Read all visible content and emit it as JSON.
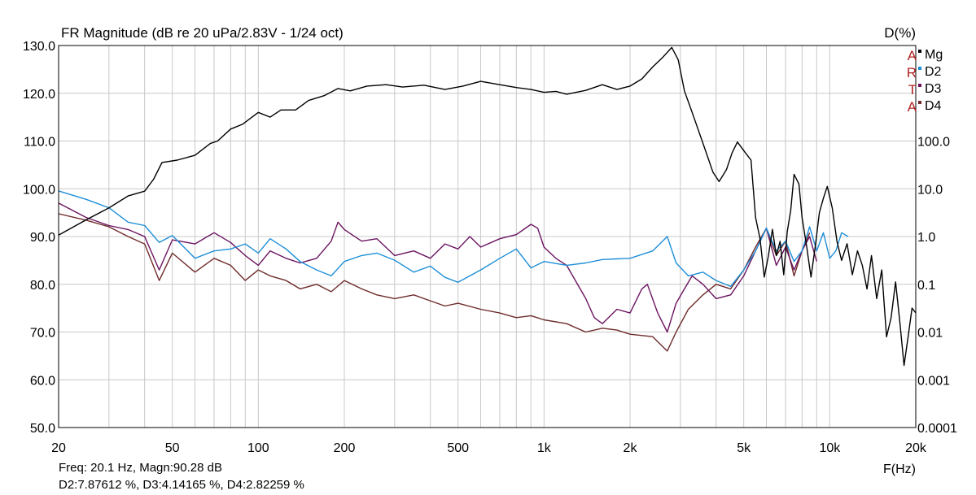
{
  "chart_data": {
    "type": "line",
    "title": "FR Magnitude (dB re 20 uPa/2.83V - 1/24 oct)",
    "right_axis_title": "D(%)",
    "xlabel": "F(Hz)",
    "x_scale": "log",
    "xlim": [
      20,
      20000
    ],
    "x_ticks": [
      {
        "value": 20,
        "label": "20"
      },
      {
        "value": 50,
        "label": "50"
      },
      {
        "value": 100,
        "label": "100"
      },
      {
        "value": 200,
        "label": "200"
      },
      {
        "value": 500,
        "label": "500"
      },
      {
        "value": 1000,
        "label": "1k"
      },
      {
        "value": 2000,
        "label": "2k"
      },
      {
        "value": 5000,
        "label": "5k"
      },
      {
        "value": 10000,
        "label": "10k"
      },
      {
        "value": 20000,
        "label": "20k"
      }
    ],
    "ylim_left": [
      50,
      130
    ],
    "y_ticks_left": [
      "50.0",
      "60.0",
      "70.0",
      "80.0",
      "90.0",
      "100.0",
      "110.0",
      "120.0",
      "130.0"
    ],
    "right_axis_scale": "log",
    "ylim_right": [
      0.0001,
      10000
    ],
    "y_ticks_right": [
      {
        "value": 0.0001,
        "label": "0.0001"
      },
      {
        "value": 0.001,
        "label": "0.001"
      },
      {
        "value": 0.01,
        "label": "0.01"
      },
      {
        "value": 0.1,
        "label": "0.1"
      },
      {
        "value": 1,
        "label": "1.0"
      },
      {
        "value": 10,
        "label": "10.0"
      },
      {
        "value": 100,
        "label": "100.0"
      }
    ],
    "grid": true,
    "legend_position": "top-right",
    "watermark": [
      "A",
      "R",
      "T",
      "A"
    ],
    "watermark_color": "#b22222",
    "series": [
      {
        "name": "Mg",
        "axis": "left",
        "color": "#000000",
        "points": [
          [
            20,
            90.3
          ],
          [
            25,
            93.5
          ],
          [
            30,
            96
          ],
          [
            35,
            98.5
          ],
          [
            40,
            99.5
          ],
          [
            43,
            102
          ],
          [
            46,
            105.5
          ],
          [
            52,
            106
          ],
          [
            60,
            107
          ],
          [
            68,
            109.5
          ],
          [
            72,
            110
          ],
          [
            80,
            112.5
          ],
          [
            88,
            113.5
          ],
          [
            100,
            116
          ],
          [
            110,
            115
          ],
          [
            120,
            116.5
          ],
          [
            135,
            116.5
          ],
          [
            150,
            118.5
          ],
          [
            170,
            119.5
          ],
          [
            190,
            121
          ],
          [
            210,
            120.5
          ],
          [
            240,
            121.5
          ],
          [
            280,
            121.8
          ],
          [
            320,
            121.3
          ],
          [
            380,
            121.7
          ],
          [
            450,
            120.8
          ],
          [
            520,
            121.5
          ],
          [
            600,
            122.5
          ],
          [
            700,
            121.8
          ],
          [
            800,
            121.2
          ],
          [
            900,
            120.8
          ],
          [
            1000,
            120.2
          ],
          [
            1100,
            120.4
          ],
          [
            1200,
            119.8
          ],
          [
            1400,
            120.6
          ],
          [
            1600,
            121.8
          ],
          [
            1800,
            120.8
          ],
          [
            2000,
            121.5
          ],
          [
            2200,
            123
          ],
          [
            2400,
            125.5
          ],
          [
            2600,
            127.5
          ],
          [
            2800,
            129.6
          ],
          [
            2950,
            127
          ],
          [
            3100,
            120.5
          ],
          [
            3300,
            116
          ],
          [
            3600,
            109.5
          ],
          [
            3900,
            103.5
          ],
          [
            4100,
            101.5
          ],
          [
            4350,
            104
          ],
          [
            4550,
            107.5
          ],
          [
            4750,
            109.8
          ],
          [
            5000,
            108
          ],
          [
            5300,
            106
          ],
          [
            5500,
            94
          ],
          [
            5700,
            89.5
          ],
          [
            5900,
            81.5
          ],
          [
            6100,
            86
          ],
          [
            6300,
            91.5
          ],
          [
            6500,
            86
          ],
          [
            6700,
            89
          ],
          [
            6900,
            82
          ],
          [
            7100,
            91
          ],
          [
            7300,
            95.5
          ],
          [
            7500,
            103
          ],
          [
            7800,
            101
          ],
          [
            8000,
            94
          ],
          [
            8300,
            88
          ],
          [
            8600,
            81.5
          ],
          [
            8900,
            88
          ],
          [
            9200,
            95
          ],
          [
            9500,
            98
          ],
          [
            9800,
            100.5
          ],
          [
            10200,
            96
          ],
          [
            10600,
            89
          ],
          [
            11000,
            85
          ],
          [
            11500,
            88.5
          ],
          [
            12000,
            82
          ],
          [
            12500,
            87
          ],
          [
            13000,
            84
          ],
          [
            13500,
            79
          ],
          [
            14000,
            86
          ],
          [
            14600,
            77
          ],
          [
            15200,
            83
          ],
          [
            15800,
            69
          ],
          [
            16400,
            73
          ],
          [
            17000,
            80.5
          ],
          [
            17600,
            72
          ],
          [
            18200,
            63
          ],
          [
            18800,
            69
          ],
          [
            19400,
            75
          ],
          [
            20000,
            74
          ]
        ]
      },
      {
        "name": "D2",
        "axis": "right",
        "color": "#1e8fd8",
        "points": [
          [
            20,
            9.0
          ],
          [
            25,
            6.0
          ],
          [
            30,
            4.0
          ],
          [
            35,
            2.0
          ],
          [
            40,
            1.7
          ],
          [
            45,
            0.75
          ],
          [
            50,
            1.05
          ],
          [
            60,
            0.35
          ],
          [
            70,
            0.5
          ],
          [
            80,
            0.55
          ],
          [
            90,
            0.7
          ],
          [
            100,
            0.45
          ],
          [
            110,
            0.9
          ],
          [
            125,
            0.55
          ],
          [
            140,
            0.3
          ],
          [
            160,
            0.2
          ],
          [
            180,
            0.15
          ],
          [
            200,
            0.3
          ],
          [
            230,
            0.4
          ],
          [
            260,
            0.45
          ],
          [
            300,
            0.32
          ],
          [
            350,
            0.18
          ],
          [
            400,
            0.24
          ],
          [
            450,
            0.14
          ],
          [
            500,
            0.11
          ],
          [
            600,
            0.2
          ],
          [
            700,
            0.35
          ],
          [
            800,
            0.55
          ],
          [
            900,
            0.22
          ],
          [
            1000,
            0.3
          ],
          [
            1200,
            0.25
          ],
          [
            1400,
            0.28
          ],
          [
            1600,
            0.33
          ],
          [
            1800,
            0.34
          ],
          [
            2000,
            0.35
          ],
          [
            2400,
            0.5
          ],
          [
            2700,
            1.0
          ],
          [
            2900,
            0.28
          ],
          [
            3200,
            0.15
          ],
          [
            3600,
            0.18
          ],
          [
            4000,
            0.12
          ],
          [
            4500,
            0.09
          ],
          [
            5000,
            0.2
          ],
          [
            5500,
            0.5
          ],
          [
            6000,
            1.5
          ],
          [
            6500,
            0.5
          ],
          [
            7000,
            0.8
          ],
          [
            7500,
            0.3
          ],
          [
            8000,
            0.5
          ],
          [
            8500,
            1.6
          ],
          [
            9000,
            0.5
          ],
          [
            9500,
            1.2
          ],
          [
            10000,
            0.35
          ],
          [
            10500,
            0.5
          ],
          [
            11000,
            1.2
          ],
          [
            11600,
            1.0
          ]
        ]
      },
      {
        "name": "D3",
        "axis": "right",
        "color": "#6b1460",
        "points": [
          [
            20,
            5.0
          ],
          [
            25,
            2.5
          ],
          [
            30,
            1.7
          ],
          [
            35,
            1.4
          ],
          [
            40,
            1.0
          ],
          [
            45,
            0.2
          ],
          [
            50,
            0.85
          ],
          [
            60,
            0.7
          ],
          [
            70,
            1.2
          ],
          [
            80,
            0.75
          ],
          [
            90,
            0.4
          ],
          [
            100,
            0.25
          ],
          [
            110,
            0.5
          ],
          [
            125,
            0.35
          ],
          [
            140,
            0.28
          ],
          [
            160,
            0.35
          ],
          [
            180,
            0.8
          ],
          [
            190,
            2.0
          ],
          [
            200,
            1.4
          ],
          [
            230,
            0.8
          ],
          [
            260,
            0.9
          ],
          [
            300,
            0.4
          ],
          [
            350,
            0.5
          ],
          [
            400,
            0.35
          ],
          [
            450,
            0.7
          ],
          [
            500,
            0.55
          ],
          [
            550,
            1.0
          ],
          [
            600,
            0.6
          ],
          [
            700,
            0.9
          ],
          [
            800,
            1.1
          ],
          [
            900,
            1.8
          ],
          [
            950,
            1.5
          ],
          [
            1000,
            0.6
          ],
          [
            1100,
            0.35
          ],
          [
            1200,
            0.25
          ],
          [
            1400,
            0.05
          ],
          [
            1500,
            0.02
          ],
          [
            1600,
            0.015
          ],
          [
            1800,
            0.03
          ],
          [
            2000,
            0.025
          ],
          [
            2200,
            0.08
          ],
          [
            2300,
            0.1
          ],
          [
            2500,
            0.025
          ],
          [
            2700,
            0.01
          ],
          [
            2900,
            0.04
          ],
          [
            3100,
            0.08
          ],
          [
            3300,
            0.15
          ],
          [
            3600,
            0.1
          ],
          [
            4000,
            0.05
          ],
          [
            4500,
            0.06
          ],
          [
            5000,
            0.15
          ],
          [
            5500,
            0.5
          ],
          [
            6000,
            1.5
          ],
          [
            6500,
            0.25
          ],
          [
            7000,
            0.6
          ],
          [
            7500,
            0.2
          ],
          [
            8000,
            0.5
          ],
          [
            8500,
            1.0
          ],
          [
            9000,
            0.3
          ]
        ]
      },
      {
        "name": "D4",
        "axis": "right",
        "color": "#6e2b2b",
        "points": [
          [
            20,
            3.0
          ],
          [
            25,
            2.2
          ],
          [
            30,
            1.6
          ],
          [
            35,
            1.0
          ],
          [
            40,
            0.7
          ],
          [
            45,
            0.12
          ],
          [
            50,
            0.45
          ],
          [
            60,
            0.18
          ],
          [
            70,
            0.35
          ],
          [
            80,
            0.25
          ],
          [
            90,
            0.12
          ],
          [
            100,
            0.2
          ],
          [
            110,
            0.15
          ],
          [
            125,
            0.12
          ],
          [
            140,
            0.08
          ],
          [
            160,
            0.1
          ],
          [
            180,
            0.07
          ],
          [
            200,
            0.12
          ],
          [
            230,
            0.08
          ],
          [
            260,
            0.06
          ],
          [
            300,
            0.05
          ],
          [
            350,
            0.06
          ],
          [
            400,
            0.045
          ],
          [
            450,
            0.035
          ],
          [
            500,
            0.04
          ],
          [
            600,
            0.03
          ],
          [
            700,
            0.025
          ],
          [
            800,
            0.02
          ],
          [
            900,
            0.022
          ],
          [
            1000,
            0.018
          ],
          [
            1200,
            0.015
          ],
          [
            1400,
            0.01
          ],
          [
            1600,
            0.012
          ],
          [
            1800,
            0.011
          ],
          [
            2000,
            0.009
          ],
          [
            2400,
            0.008
          ],
          [
            2700,
            0.004
          ],
          [
            2900,
            0.01
          ],
          [
            3200,
            0.03
          ],
          [
            3600,
            0.06
          ],
          [
            4000,
            0.1
          ],
          [
            4500,
            0.08
          ],
          [
            5000,
            0.2
          ],
          [
            5500,
            0.6
          ],
          [
            6000,
            1.5
          ],
          [
            6500,
            0.4
          ],
          [
            7000,
            0.8
          ],
          [
            7500,
            0.15
          ],
          [
            8000,
            0.5
          ],
          [
            8500,
            1.2
          ]
        ]
      }
    ],
    "cursor_readout_line1": "Freq: 20.1 Hz, Magn:90.28 dB",
    "cursor_readout_line2": "D2:7.87612 %, D3:4.14165 %, D4:2.82259 %"
  }
}
